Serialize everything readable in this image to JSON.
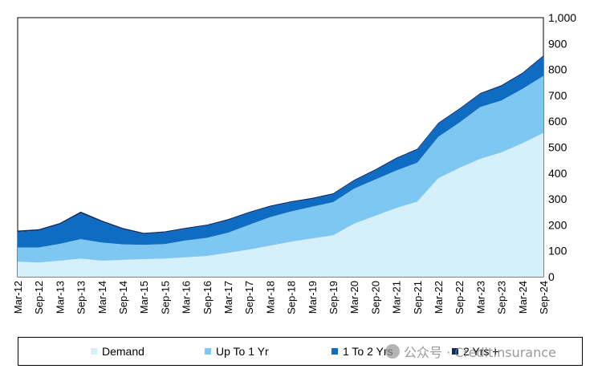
{
  "chart_data": {
    "type": "area",
    "stacked": true,
    "title": "",
    "xlabel": "",
    "ylabel": "",
    "ylim": [
      0,
      1000
    ],
    "yticks": [
      "1,000",
      "900",
      "800",
      "700",
      "600",
      "500",
      "400",
      "300",
      "200",
      "100",
      "0"
    ],
    "xticks": [
      "Mar-12",
      "Sep-12",
      "Mar-13",
      "Sep-13",
      "Mar-14",
      "Sep-14",
      "Mar-15",
      "Sep-15",
      "Mar-16",
      "Sep-16",
      "Mar-17",
      "Sep-17",
      "Mar-18",
      "Sep-18",
      "Mar-19",
      "Sep-19",
      "Mar-20",
      "Sep-20",
      "Mar-21",
      "Sep-21",
      "Mar-22",
      "Sep-22",
      "Mar-23",
      "Sep-23",
      "Mar-24",
      "Sep-24"
    ],
    "x": [
      "Mar-12",
      "Sep-12",
      "Mar-13",
      "Sep-13",
      "Mar-14",
      "Sep-14",
      "Mar-15",
      "Sep-15",
      "Mar-16",
      "Sep-16",
      "Mar-17",
      "Sep-17",
      "Mar-18",
      "Sep-18",
      "Mar-19",
      "Sep-19",
      "Mar-20",
      "Sep-20",
      "Mar-21",
      "Sep-21",
      "Mar-22",
      "Sep-22",
      "Mar-23",
      "Sep-23",
      "Mar-24",
      "Sep-24"
    ],
    "grid": false,
    "legend_position": "bottom",
    "series": [
      {
        "name": "Demand",
        "color": "#d6f0fb",
        "values": [
          58,
          55,
          62,
          70,
          62,
          65,
          68,
          70,
          75,
          80,
          92,
          105,
          120,
          135,
          148,
          160,
          205,
          235,
          265,
          290,
          380,
          420,
          455,
          480,
          515,
          555
        ]
      },
      {
        "name": "Up To 1 Yr",
        "color": "#7ec7f2",
        "values": [
          55,
          58,
          65,
          75,
          70,
          60,
          55,
          56,
          65,
          70,
          78,
          95,
          110,
          117,
          122,
          128,
          135,
          140,
          145,
          150,
          160,
          175,
          200,
          200,
          210,
          220
        ]
      },
      {
        "name": "1 To 2 Yrs",
        "color": "#0e6cc2",
        "values": [
          60,
          65,
          75,
          100,
          80,
          58,
          42,
          45,
          45,
          47,
          48,
          46,
          40,
          35,
          30,
          30,
          30,
          35,
          45,
          50,
          50,
          50,
          50,
          55,
          58,
          75
        ]
      },
      {
        "name": "2 Yrs +",
        "color": "#0b2a62",
        "values": [
          5,
          5,
          5,
          6,
          5,
          5,
          4,
          4,
          4,
          4,
          4,
          4,
          4,
          4,
          4,
          4,
          4,
          4,
          4,
          4,
          4,
          4,
          4,
          4,
          4,
          4
        ]
      }
    ]
  },
  "watermark": {
    "text": "公众号 · CreditInsurance"
  }
}
